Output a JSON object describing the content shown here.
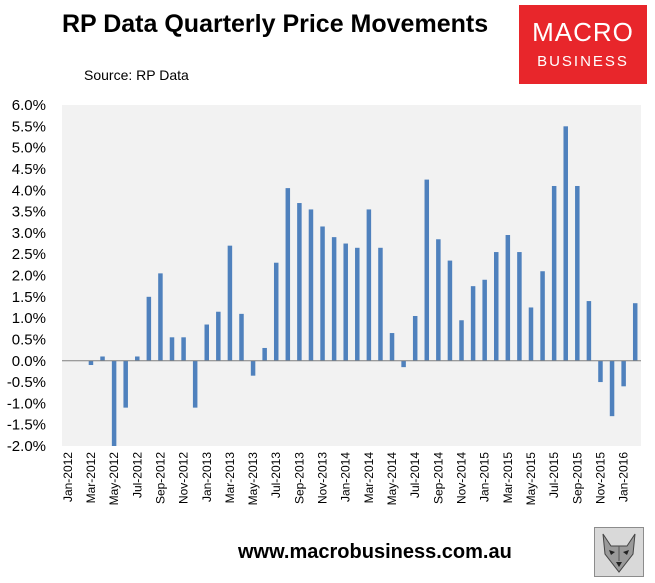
{
  "header": {
    "title": "RP Data Quarterly Price Movements",
    "source": "Source: RP Data"
  },
  "logo": {
    "line1": "MACRO",
    "line2": "BUSINESS"
  },
  "footer": {
    "website": "www.macrobusiness.com.au"
  },
  "colors": {
    "bar": "#4f81bd",
    "logo_bg": "#e8262b",
    "plot_bg": "#f2f2f2"
  },
  "chart_data": {
    "type": "bar",
    "title": "RP Data Quarterly Price Movements",
    "xlabel": "",
    "ylabel": "",
    "ylim": [
      -2.0,
      6.0
    ],
    "y_ticks": [
      "6.0%",
      "5.5%",
      "5.0%",
      "4.5%",
      "4.0%",
      "3.5%",
      "3.0%",
      "2.5%",
      "2.0%",
      "1.5%",
      "1.0%",
      "0.5%",
      "0.0%",
      "-0.5%",
      "-1.0%",
      "-1.5%",
      "-2.0%"
    ],
    "x_tick_labels": [
      "Jan-2012",
      "Mar-2012",
      "May-2012",
      "Jul-2012",
      "Sep-2012",
      "Nov-2012",
      "Jan-2013",
      "Mar-2013",
      "May-2013",
      "Jul-2013",
      "Sep-2013",
      "Nov-2013",
      "Jan-2014",
      "Mar-2014",
      "May-2014",
      "Jul-2014",
      "Sep-2014",
      "Nov-2014",
      "Jan-2015",
      "Mar-2015",
      "May-2015",
      "Jul-2015",
      "Sep-2015",
      "Nov-2015",
      "Jan-2016"
    ],
    "categories": [
      "Jan-2012",
      "Feb-2012",
      "Mar-2012",
      "Apr-2012",
      "May-2012",
      "Jun-2012",
      "Jul-2012",
      "Aug-2012",
      "Sep-2012",
      "Oct-2012",
      "Nov-2012",
      "Dec-2012",
      "Jan-2013",
      "Feb-2013",
      "Mar-2013",
      "Apr-2013",
      "May-2013",
      "Jun-2013",
      "Jul-2013",
      "Aug-2013",
      "Sep-2013",
      "Oct-2013",
      "Nov-2013",
      "Dec-2013",
      "Jan-2014",
      "Feb-2014",
      "Mar-2014",
      "Apr-2014",
      "May-2014",
      "Jun-2014",
      "Jul-2014",
      "Aug-2014",
      "Sep-2014",
      "Oct-2014",
      "Nov-2014",
      "Dec-2014",
      "Jan-2015",
      "Feb-2015",
      "Mar-2015",
      "Apr-2015",
      "May-2015",
      "Jun-2015",
      "Jul-2015",
      "Aug-2015",
      "Sep-2015",
      "Oct-2015",
      "Nov-2015",
      "Dec-2015",
      "Jan-2016",
      "Feb-2016"
    ],
    "values": [
      null,
      null,
      -0.1,
      0.1,
      -2.0,
      -1.1,
      0.1,
      1.5,
      2.05,
      0.55,
      0.55,
      -1.1,
      0.85,
      1.15,
      2.7,
      1.1,
      -0.35,
      0.3,
      2.3,
      4.05,
      3.7,
      3.55,
      3.15,
      2.9,
      2.75,
      2.65,
      3.55,
      2.65,
      0.65,
      -0.15,
      1.05,
      4.25,
      2.85,
      2.35,
      0.95,
      1.75,
      1.9,
      2.55,
      2.95,
      2.55,
      1.25,
      2.1,
      4.1,
      5.5,
      4.1,
      1.4,
      -0.5,
      -1.3,
      -0.6,
      1.35
    ]
  }
}
